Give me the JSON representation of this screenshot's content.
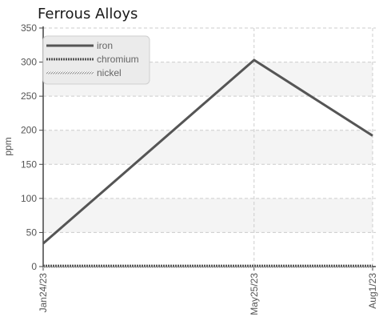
{
  "chart_data": {
    "type": "line",
    "title": "Ferrous Alloys",
    "xlabel": "",
    "ylabel": "ppm",
    "categories": [
      "Jan24/23",
      "May25/23",
      "Aug1/23"
    ],
    "x_dates": [
      "2023-01-24",
      "2023-05-25",
      "2023-08-01"
    ],
    "ylim": [
      0,
      350
    ],
    "yticks": [
      0,
      50,
      100,
      150,
      200,
      250,
      300,
      350
    ],
    "grid": true,
    "legend_position": "top-left",
    "series": [
      {
        "name": "iron",
        "values": [
          34,
          303,
          192
        ],
        "color": "#555555",
        "style": "solid"
      },
      {
        "name": "chromium",
        "values": [
          1,
          1,
          1
        ],
        "color": "#555555",
        "style": "dense-dash"
      },
      {
        "name": "nickel",
        "values": [
          0,
          0,
          0
        ],
        "color": "#888888",
        "style": "hatched"
      }
    ]
  }
}
